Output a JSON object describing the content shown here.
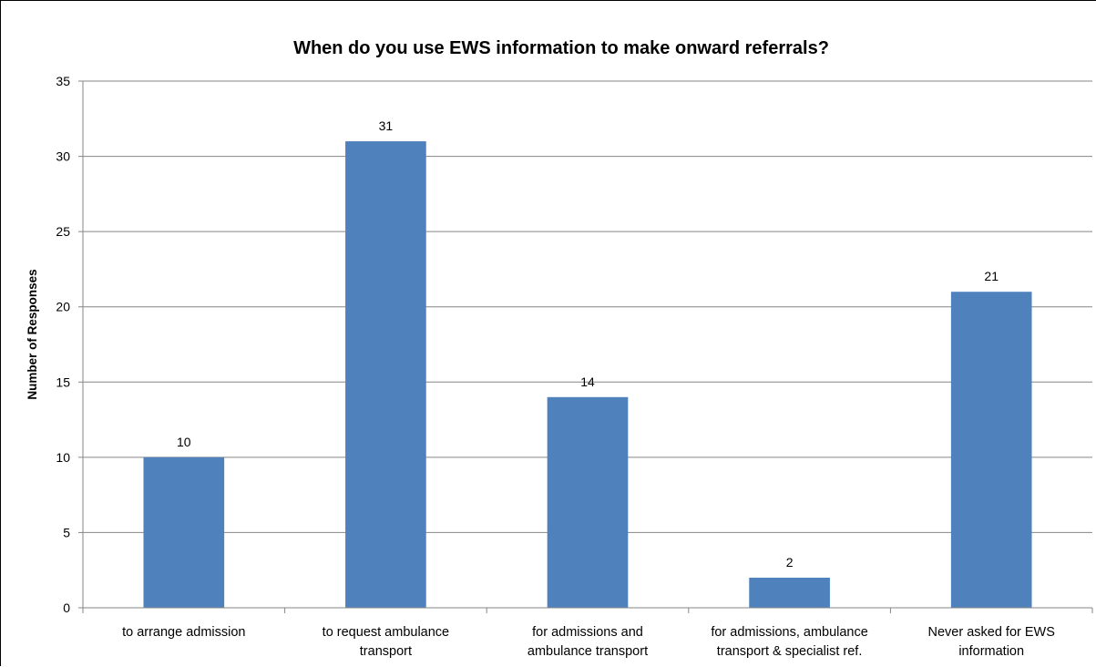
{
  "chart_data": {
    "type": "bar",
    "title": "When do you use EWS information to make onward referrals?",
    "xlabel": "",
    "ylabel": "Number of Responses",
    "categories": [
      "to arrange admission",
      "to request ambulance transport",
      "for admissions and ambulance transport",
      "for admissions, ambulance transport & specialist ref.",
      "Never asked for EWS information"
    ],
    "category_lines": [
      [
        "to arrange admission"
      ],
      [
        "to request ambulance",
        "transport"
      ],
      [
        "for admissions and",
        "ambulance transport"
      ],
      [
        "for admissions, ambulance",
        "transport & specialist ref."
      ],
      [
        "Never asked for EWS",
        "information"
      ]
    ],
    "values": [
      10,
      31,
      14,
      2,
      21
    ],
    "data_labels": [
      "10",
      "31",
      "14",
      "2",
      "21"
    ],
    "ylim": [
      0,
      35
    ],
    "yticks": [
      0,
      5,
      10,
      15,
      20,
      25,
      30,
      35
    ],
    "grid": true,
    "legend": "none",
    "bar_color": "#4f81bd",
    "gridline_color": "#868686"
  }
}
